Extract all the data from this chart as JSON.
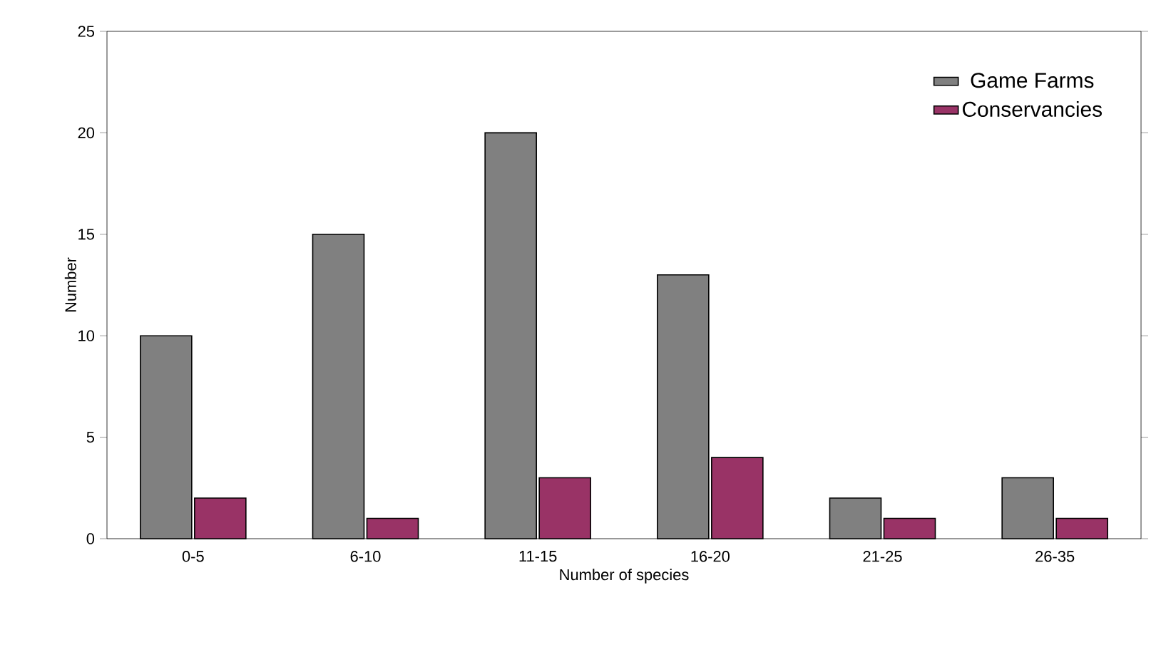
{
  "chart_data": {
    "type": "bar",
    "xlabel": "Number of species",
    "ylabel": "Number",
    "categories": [
      "0-5",
      "6-10",
      "11-15",
      "16-20",
      "21-25",
      "26-35"
    ],
    "series": [
      {
        "name": "Game Farms",
        "color": "#808080",
        "values": [
          10,
          15,
          20,
          13,
          2,
          3
        ]
      },
      {
        "name": "Conservancies",
        "color": "#993366",
        "values": [
          2,
          1,
          3,
          4,
          1,
          1
        ]
      }
    ],
    "ylim": [
      0,
      25
    ],
    "yticks": [
      0,
      5,
      10,
      15,
      20,
      25
    ],
    "legend": "top right"
  }
}
